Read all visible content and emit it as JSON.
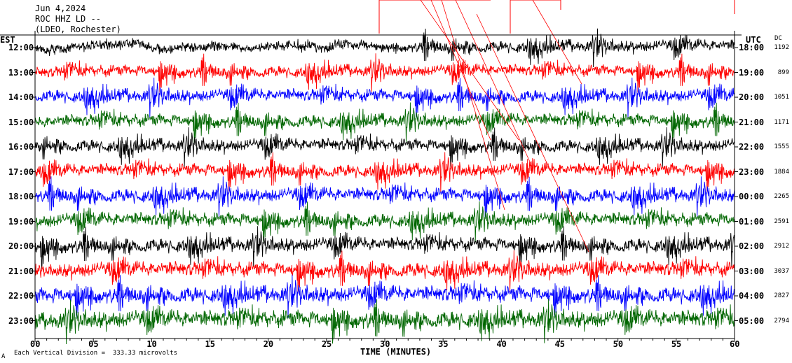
{
  "header": {
    "date": "Jun 4,2024",
    "station": "ROC HHZ LD --",
    "location": "(LDEO, Rochester)"
  },
  "left_axis_title": "EST",
  "right_axis_title": "UTC",
  "dc_title": "DC",
  "footer": {
    "corner_mark": "A",
    "scale_note": "Each Vertical Division =  333.33 microvolts"
  },
  "colors": {
    "black": "#000000",
    "red": "#ff0000",
    "blue": "#0000ff",
    "green": "#006600",
    "axis": "#000000"
  },
  "chart_data": {
    "type": "line",
    "title": "Jun 4,2024",
    "xlabel": "TIME (MINUTES)",
    "xlim": [
      0,
      60
    ],
    "x_ticks": [
      "00",
      "05",
      "10",
      "15",
      "20",
      "25",
      "30",
      "35",
      "40",
      "45",
      "50",
      "55",
      "60"
    ],
    "rows": [
      {
        "est": "12:00",
        "utc": "18:00",
        "dc": "1192",
        "color": "black",
        "amplitude": 0.9
      },
      {
        "est": "13:00",
        "utc": "19:00",
        "dc": "899",
        "color": "red",
        "amplitude": 0.9
      },
      {
        "est": "14:00",
        "utc": "20:00",
        "dc": "1051",
        "color": "blue",
        "amplitude": 1.0
      },
      {
        "est": "15:00",
        "utc": "21:00",
        "dc": "1171",
        "color": "green",
        "amplitude": 1.0
      },
      {
        "est": "16:00",
        "utc": "22:00",
        "dc": "1555",
        "color": "black",
        "amplitude": 1.0
      },
      {
        "est": "17:00",
        "utc": "23:00",
        "dc": "1884",
        "color": "red",
        "amplitude": 1.0
      },
      {
        "est": "18:00",
        "utc": "00:00",
        "dc": "2265",
        "color": "blue",
        "amplitude": 1.1
      },
      {
        "est": "19:00",
        "utc": "01:00",
        "dc": "2591",
        "color": "green",
        "amplitude": 1.1
      },
      {
        "est": "20:00",
        "utc": "02:00",
        "dc": "2912",
        "color": "black",
        "amplitude": 1.1
      },
      {
        "est": "21:00",
        "utc": "03:00",
        "dc": "3037",
        "color": "red",
        "amplitude": 1.2
      },
      {
        "est": "22:00",
        "utc": "04:00",
        "dc": "2827",
        "color": "blue",
        "amplitude": 1.3
      },
      {
        "est": "23:00",
        "utc": "05:00",
        "dc": "2794",
        "color": "green",
        "amplitude": 1.4
      }
    ]
  }
}
